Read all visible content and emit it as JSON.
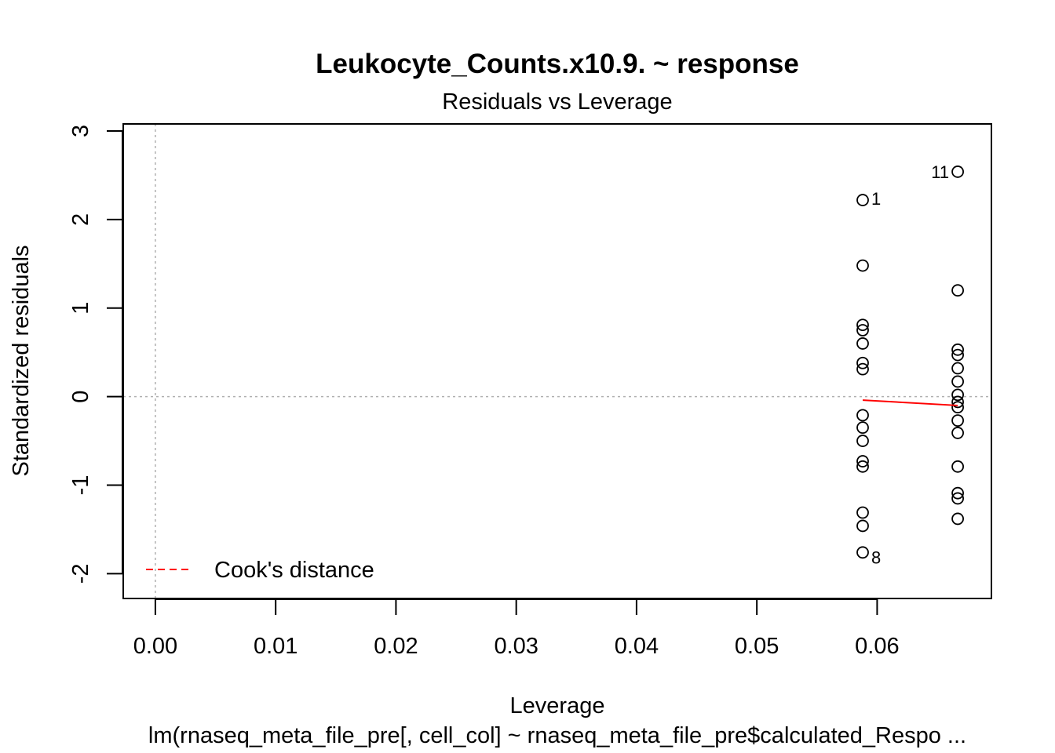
{
  "chart_data": {
    "type": "scatter",
    "title": "Leukocyte_Counts.x10.9. ~ response",
    "subtitle": "Residuals vs Leverage",
    "xlabel": "Leverage",
    "ylabel": "Standardized residuals",
    "caption": "lm(rnaseq_meta_file_pre[, cell_col] ~ rnaseq_meta_file_pre$calculated_Respo ...",
    "xlim": [
      -0.00267,
      0.0695
    ],
    "ylim": [
      -2.28,
      3.08
    ],
    "xticks": [
      "0.00",
      "0.01",
      "0.02",
      "0.03",
      "0.04",
      "0.05",
      "0.06"
    ],
    "yticks": [
      "-2",
      "-1",
      "0",
      "1",
      "2",
      "3"
    ],
    "reference_lines": {
      "x": 0,
      "y": 0,
      "style": "dotted",
      "color": "#b0b0b0"
    },
    "series": [
      {
        "points": [
          {
            "x": 0.0588,
            "y": 2.22,
            "label": "1"
          },
          {
            "x": 0.0588,
            "y": 1.48
          },
          {
            "x": 0.0588,
            "y": 0.81
          },
          {
            "x": 0.0588,
            "y": 0.75
          },
          {
            "x": 0.0588,
            "y": 0.6
          },
          {
            "x": 0.0588,
            "y": 0.38
          },
          {
            "x": 0.0588,
            "y": 0.31
          },
          {
            "x": 0.0588,
            "y": -0.21
          },
          {
            "x": 0.0588,
            "y": -0.35
          },
          {
            "x": 0.0588,
            "y": -0.5
          },
          {
            "x": 0.0588,
            "y": -0.73
          },
          {
            "x": 0.0588,
            "y": -0.79
          },
          {
            "x": 0.0588,
            "y": -1.31
          },
          {
            "x": 0.0588,
            "y": -1.46
          },
          {
            "x": 0.0588,
            "y": -1.76,
            "label": "8"
          },
          {
            "x": 0.0667,
            "y": 2.54,
            "label": "11"
          },
          {
            "x": 0.0667,
            "y": 1.2
          },
          {
            "x": 0.0667,
            "y": 0.53
          },
          {
            "x": 0.0667,
            "y": 0.47
          },
          {
            "x": 0.0667,
            "y": 0.32
          },
          {
            "x": 0.0667,
            "y": 0.17
          },
          {
            "x": 0.0667,
            "y": 0.02
          },
          {
            "x": 0.0667,
            "y": -0.06
          },
          {
            "x": 0.0667,
            "y": -0.12
          },
          {
            "x": 0.0667,
            "y": -0.27
          },
          {
            "x": 0.0667,
            "y": -0.41
          },
          {
            "x": 0.0667,
            "y": -0.79
          },
          {
            "x": 0.0667,
            "y": -1.09
          },
          {
            "x": 0.0667,
            "y": -1.15
          },
          {
            "x": 0.0667,
            "y": -1.38
          }
        ]
      }
    ],
    "smooth_line": {
      "color": "#ff0000",
      "points": [
        {
          "x": 0.0588,
          "y": -0.04
        },
        {
          "x": 0.0667,
          "y": -0.1
        }
      ]
    },
    "legend": {
      "position": "bottom-left",
      "entries": [
        {
          "label": "Cook's distance",
          "color": "#ff0000",
          "style": "dashed"
        }
      ]
    },
    "grid": false
  }
}
